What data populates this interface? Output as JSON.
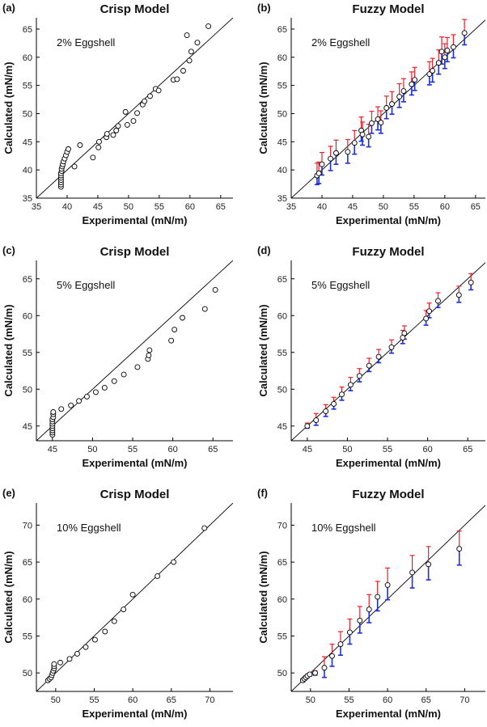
{
  "colors": {
    "upper_error": "#e8202a",
    "lower_error": "#1f2fd6",
    "axis": "#000000",
    "marker": "#000000"
  },
  "chart_data": [
    {
      "panel": "(a)",
      "type": "scatter",
      "title": "Crisp Model",
      "annotation": "2% Eggshell",
      "xlabel": "Experimental (mN/m)",
      "ylabel": "Calculated (mN/m)",
      "xlim": [
        35,
        67
      ],
      "ylim": [
        35,
        67
      ],
      "xticks": [
        35,
        40,
        45,
        50,
        55,
        60,
        65
      ],
      "yticks": [
        35,
        40,
        45,
        50,
        55,
        60,
        65
      ],
      "diagonal": true,
      "points": [
        [
          39.0,
          37.0
        ],
        [
          39.0,
          37.4
        ],
        [
          39.0,
          37.8
        ],
        [
          39.0,
          38.2
        ],
        [
          39.0,
          38.6
        ],
        [
          39.0,
          39.0
        ],
        [
          39.0,
          39.4
        ],
        [
          39.1,
          39.8
        ],
        [
          39.1,
          40.2
        ],
        [
          39.2,
          40.6
        ],
        [
          39.3,
          41.0
        ],
        [
          39.4,
          41.5
        ],
        [
          39.6,
          42.0
        ],
        [
          39.8,
          42.6
        ],
        [
          40.0,
          43.2
        ],
        [
          40.2,
          43.7
        ],
        [
          41.2,
          40.6
        ],
        [
          42.1,
          44.4
        ],
        [
          44.2,
          42.2
        ],
        [
          45.1,
          44.0
        ],
        [
          45.2,
          45.0
        ],
        [
          46.4,
          45.8
        ],
        [
          46.5,
          46.4
        ],
        [
          47.5,
          46.2
        ],
        [
          48.0,
          47.0
        ],
        [
          48.3,
          47.8
        ],
        [
          49.5,
          50.3
        ],
        [
          49.8,
          48.0
        ],
        [
          50.8,
          48.7
        ],
        [
          51.4,
          50.1
        ],
        [
          52.3,
          51.6
        ],
        [
          52.6,
          52.2
        ],
        [
          53.5,
          53.1
        ],
        [
          54.4,
          54.4
        ],
        [
          54.9,
          54.1
        ],
        [
          57.3,
          56.0
        ],
        [
          57.9,
          56.1
        ],
        [
          58.9,
          57.6
        ],
        [
          59.5,
          63.9
        ],
        [
          59.9,
          59.4
        ],
        [
          60.2,
          61.0
        ],
        [
          61.2,
          62.6
        ],
        [
          63.0,
          65.5
        ]
      ]
    },
    {
      "panel": "(b)",
      "type": "scatter",
      "title": "Fuzzy Model",
      "annotation": "2% Eggshell",
      "xlabel": "Experimental (mN/m)",
      "ylabel": "Calculated (mN/m)",
      "xlim": [
        35,
        67
      ],
      "ylim": [
        35,
        67
      ],
      "xticks": [
        35,
        40,
        45,
        50,
        55,
        60,
        65
      ],
      "yticks": [
        35,
        40,
        45,
        50,
        55,
        60,
        65
      ],
      "diagonal": true,
      "points": [
        [
          39.2,
          39.0,
          1.6,
          2.2
        ],
        [
          39.5,
          39.4,
          1.8,
          2.0
        ],
        [
          40.0,
          41.0,
          1.9,
          2.1
        ],
        [
          41.4,
          42.0,
          2.1,
          2.2
        ],
        [
          42.3,
          43.0,
          2.0,
          2.3
        ],
        [
          44.2,
          43.2,
          2.0,
          2.2
        ],
        [
          45.3,
          44.8,
          2.0,
          2.2
        ],
        [
          46.4,
          47.0,
          1.9,
          2.4
        ],
        [
          46.6,
          46.3,
          1.9,
          2.2
        ],
        [
          47.6,
          45.9,
          1.8,
          2.2
        ],
        [
          48.1,
          48.3,
          1.8,
          2.1
        ],
        [
          49.1,
          49.0,
          1.9,
          2.2
        ],
        [
          49.6,
          48.4,
          1.9,
          2.1
        ],
        [
          50.5,
          51.0,
          1.9,
          2.1
        ],
        [
          51.4,
          51.7,
          1.8,
          2.2
        ],
        [
          52.6,
          53.0,
          1.9,
          2.3
        ],
        [
          53.3,
          54.0,
          1.9,
          2.2
        ],
        [
          54.6,
          55.2,
          1.9,
          2.2
        ],
        [
          55.1,
          56.0,
          1.9,
          2.2
        ],
        [
          57.5,
          57.0,
          1.9,
          2.2
        ],
        [
          58.0,
          57.6,
          2.0,
          2.2
        ],
        [
          59.0,
          59.0,
          2.0,
          2.3
        ],
        [
          59.5,
          61.0,
          2.2,
          2.6
        ],
        [
          60.0,
          60.0,
          2.0,
          2.4
        ],
        [
          60.4,
          61.2,
          2.0,
          2.3
        ],
        [
          61.4,
          61.8,
          1.9,
          2.2
        ],
        [
          63.2,
          64.3,
          2.1,
          2.4
        ]
      ]
    },
    {
      "panel": "(c)",
      "type": "scatter",
      "title": "Crisp Model",
      "annotation": "5% Eggshell",
      "xlabel": "Experimental (mN/m)",
      "ylabel": "Calculated (mN/m)",
      "xlim": [
        43,
        67.5
      ],
      "ylim": [
        43,
        67.5
      ],
      "xticks": [
        45,
        50,
        55,
        60,
        65
      ],
      "yticks": [
        45,
        50,
        55,
        60,
        65
      ],
      "diagonal": true,
      "points": [
        [
          45.0,
          43.8
        ],
        [
          45.0,
          44.1
        ],
        [
          45.0,
          44.4
        ],
        [
          45.0,
          44.7
        ],
        [
          45.0,
          45.0
        ],
        [
          45.0,
          45.3
        ],
        [
          45.0,
          45.6
        ],
        [
          45.0,
          45.9
        ],
        [
          45.1,
          46.2
        ],
        [
          45.1,
          46.6
        ],
        [
          45.1,
          46.9
        ],
        [
          46.1,
          47.3
        ],
        [
          47.3,
          47.8
        ],
        [
          48.3,
          48.4
        ],
        [
          49.3,
          49.0
        ],
        [
          50.4,
          49.6
        ],
        [
          51.5,
          50.2
        ],
        [
          52.7,
          51.1
        ],
        [
          53.9,
          52.0
        ],
        [
          55.6,
          53.0
        ],
        [
          56.9,
          54.1
        ],
        [
          57.0,
          54.6
        ],
        [
          57.1,
          55.3
        ],
        [
          59.8,
          56.6
        ],
        [
          60.2,
          58.1
        ],
        [
          61.2,
          59.7
        ],
        [
          64.0,
          60.9
        ],
        [
          65.3,
          63.5
        ]
      ]
    },
    {
      "panel": "(d)",
      "type": "scatter",
      "title": "Fuzzy Model",
      "annotation": "5% Eggshell",
      "xlabel": "Experimental (mN/m)",
      "ylabel": "Calculated (mN/m)",
      "xlim": [
        43,
        67.5
      ],
      "ylim": [
        43,
        67.5
      ],
      "xticks": [
        45,
        50,
        55,
        60,
        65
      ],
      "yticks": [
        45,
        50,
        55,
        60,
        65
      ],
      "diagonal": true,
      "points": [
        [
          45.0,
          45.0,
          0.3,
          0.4
        ],
        [
          46.1,
          45.8,
          0.7,
          0.9
        ],
        [
          47.3,
          47.0,
          0.7,
          0.9
        ],
        [
          48.3,
          48.0,
          0.7,
          0.9
        ],
        [
          49.3,
          49.3,
          0.8,
          1.0
        ],
        [
          50.4,
          50.6,
          0.8,
          1.0
        ],
        [
          51.5,
          51.8,
          0.8,
          1.0
        ],
        [
          52.7,
          53.2,
          0.8,
          1.0
        ],
        [
          53.9,
          54.4,
          0.8,
          1.0
        ],
        [
          55.5,
          55.7,
          0.8,
          1.0
        ],
        [
          56.9,
          57.0,
          0.8,
          1.0
        ],
        [
          57.1,
          57.6,
          0.8,
          1.0
        ],
        [
          59.8,
          59.6,
          0.9,
          1.1
        ],
        [
          60.2,
          60.6,
          0.9,
          1.1
        ],
        [
          61.3,
          62.0,
          0.9,
          1.1
        ],
        [
          63.9,
          62.8,
          1.0,
          1.2
        ],
        [
          65.4,
          64.5,
          1.0,
          1.2
        ]
      ]
    },
    {
      "panel": "(e)",
      "type": "scatter",
      "title": "Crisp Model",
      "annotation": "10% Eggshell",
      "xlabel": "Experimental (mN/m)",
      "ylabel": "Calculated (mN/m)",
      "xlim": [
        47.5,
        73
      ],
      "ylim": [
        47.5,
        73
      ],
      "xticks": [
        50,
        55,
        60,
        65,
        70
      ],
      "yticks": [
        50,
        55,
        60,
        65,
        70
      ],
      "diagonal": true,
      "points": [
        [
          49.0,
          49.0
        ],
        [
          49.2,
          49.2
        ],
        [
          49.4,
          49.4
        ],
        [
          49.5,
          49.7
        ],
        [
          49.6,
          50.0
        ],
        [
          49.7,
          50.3
        ],
        [
          49.8,
          50.6
        ],
        [
          49.8,
          50.9
        ],
        [
          49.8,
          51.2
        ],
        [
          50.6,
          51.4
        ],
        [
          51.8,
          51.9
        ],
        [
          52.8,
          52.6
        ],
        [
          53.9,
          53.5
        ],
        [
          55.1,
          54.5
        ],
        [
          56.4,
          55.6
        ],
        [
          57.6,
          57.0
        ],
        [
          58.8,
          58.6
        ],
        [
          60.0,
          60.6
        ],
        [
          63.2,
          63.1
        ],
        [
          65.3,
          65.0
        ],
        [
          69.3,
          69.6
        ]
      ]
    },
    {
      "panel": "(f)",
      "type": "scatter",
      "title": "Fuzzy Model",
      "annotation": "10% Eggshell",
      "xlabel": "Experimental (mN/m)",
      "ylabel": "Calculated (mN/m)",
      "xlim": [
        47.5,
        73
      ],
      "ylim": [
        47.5,
        73
      ],
      "xticks": [
        50,
        55,
        60,
        65,
        70
      ],
      "yticks": [
        50,
        55,
        60,
        65,
        70
      ],
      "diagonal": true,
      "points": [
        [
          49.0,
          49.0,
          0.2,
          0.2
        ],
        [
          49.2,
          49.2,
          0.2,
          0.2
        ],
        [
          49.4,
          49.4,
          0.2,
          0.2
        ],
        [
          49.6,
          49.6,
          0.2,
          0.2
        ],
        [
          49.9,
          49.8,
          0.2,
          0.2
        ],
        [
          50.6,
          50.0,
          0.3,
          0.3
        ],
        [
          51.8,
          50.7,
          1.3,
          1.5
        ],
        [
          52.8,
          52.3,
          1.4,
          1.6
        ],
        [
          53.9,
          53.9,
          1.5,
          1.7
        ],
        [
          55.1,
          55.5,
          1.6,
          1.8
        ],
        [
          56.4,
          57.1,
          1.7,
          1.9
        ],
        [
          57.6,
          58.6,
          1.8,
          2.0
        ],
        [
          58.7,
          60.3,
          1.9,
          2.1
        ],
        [
          60.0,
          61.9,
          2.0,
          2.3
        ],
        [
          63.2,
          63.6,
          2.1,
          2.3
        ],
        [
          65.3,
          64.7,
          2.1,
          2.4
        ],
        [
          69.3,
          66.8,
          2.2,
          2.4
        ]
      ]
    }
  ]
}
